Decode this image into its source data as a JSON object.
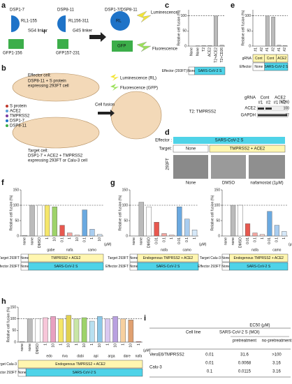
{
  "panel_labels": [
    "a",
    "b",
    "c",
    "d",
    "e",
    "f",
    "g",
    "h",
    "i"
  ],
  "panels": {
    "a": {
      "dsp17": "DSP1-7",
      "dsp811": "DSP8-11",
      "product": "DSP1-7/DSP8-11",
      "rl1": "RL1-155",
      "sg4": "SG4 linker",
      "gfp1": "GFP1-156",
      "rl2": "RL156-311",
      "g4s": "G4S linker",
      "gfp2": "GFP157-231",
      "plus": "+",
      "rl": "RL",
      "gfp": "GFP",
      "lum": "Luminescence",
      "fluo": "Fluorescence"
    },
    "b": {
      "effector": "Effector cell:",
      "effector_desc1": "DSP8-11 + S protein",
      "effector_desc2": "expressing 293FT cell",
      "fusion": "Cell fusion",
      "lum": "Luminescence (RL)",
      "fluo": "Fluorescence (GFP)",
      "legend": [
        "S protein",
        "ACE2",
        "TMPRSS2",
        "DSP1-7",
        "DSP8-11"
      ],
      "target": "Target cell:",
      "target_desc1": "DSP1-7 + ACE2 + TMPRSS2",
      "target_desc2": "expressing 293FT or Calu-3 cell"
    },
    "c": {
      "note": "T2: TMPRSS2"
    },
    "d": {
      "effector_label": "Effector :",
      "effector": "SARS-CoV-2 S",
      "target_label": "Target:",
      "target_none": "None",
      "target": "TMPRSS2 + ACE2",
      "cell": "293FT",
      "images": [
        "None",
        "DMSO",
        "nafamostat (1μM)"
      ]
    },
    "e": {
      "grna": "gRNA",
      "cont": "Cont",
      "ace2": "ACE2",
      "lanes": [
        "#1",
        "#2",
        "#1",
        "#2"
      ],
      "kda": "(kDa)",
      "band1": "ACE2",
      "band2": "GAPDH",
      "mw1": "100",
      "mw2": "37"
    }
  },
  "chart_data": [
    {
      "type": "bar",
      "ylabel": "Relative cell fusion (%)",
      "categories": [
        "None",
        "None",
        "T2",
        "ACE2",
        "T2+ACE2",
        "T2+CD26"
      ],
      "values": [
        0,
        1,
        2,
        2,
        100,
        3
      ],
      "colors": [
        "#bbbbbb",
        "#bbbbbb",
        "#bbbbbb",
        "#bbbbbb",
        "#bbbbbb",
        "#bbbbbb"
      ],
      "ylim": [
        0,
        120
      ],
      "yticks": [
        0,
        50,
        100
      ],
      "reference_line": 100,
      "rows": [
        {
          "label": "Effector (293FT)",
          "cells": [
            "None",
            "SARS-CoV-2 S"
          ]
        }
      ]
    },
    {
      "type": "bar",
      "ylabel": "Relative cell fusion (%)",
      "categories": [
        "#1",
        "#2",
        "#1",
        "#2",
        "#1",
        "#2"
      ],
      "values": [
        0,
        0,
        100,
        96,
        3,
        2
      ],
      "colors": [
        "#bbbbbb",
        "#bbbbbb",
        "#bbbbbb",
        "#bbbbbb",
        "#bbbbbb",
        "#bbbbbb"
      ],
      "ylim": [
        0,
        120
      ],
      "yticks": [
        0,
        50,
        100
      ],
      "reference_line": 100,
      "rows": [
        {
          "label": "gRNA",
          "cells": [
            "Cont",
            "Cont",
            "ACE2"
          ]
        },
        {
          "label": "Effector",
          "cells": [
            "None",
            "SARS-CoV-2 S"
          ]
        }
      ]
    },
    {
      "type": "bar",
      "ylabel": "Relative cell fusion (%)",
      "categories": [
        "none",
        "none",
        "DMSO",
        "1",
        "10",
        "0.1",
        "1",
        "10",
        "0.1",
        "1",
        "10"
      ],
      "values": [
        2,
        100,
        100,
        100,
        95,
        35,
        10,
        3,
        85,
        22,
        5
      ],
      "colors": [
        "#bbbbbb",
        "#bbbbbb",
        "#ffffff",
        "#f5e66a",
        "#9ed36a",
        "#e8584f",
        "#f4a6a0",
        "#f9d3cf",
        "#6aa9e0",
        "#a9cdf0",
        "#d6e8f8"
      ],
      "ylim": [
        0,
        150
      ],
      "yticks": [
        0,
        50,
        100,
        150
      ],
      "reference_line": 100,
      "groups": [
        "gabe",
        "nafa",
        "camo"
      ],
      "unit": "(μM)",
      "rows": [
        {
          "label": "Target 293FT",
          "cells": [
            "None",
            "TMPRSS2 + ACE2"
          ]
        },
        {
          "label": "Effector 293FT",
          "cells": [
            "None",
            "SARS-CoV-2 S"
          ]
        }
      ]
    },
    {
      "type": "bar",
      "ylabel": "Relative cell fusion (%)",
      "categories": [
        "none",
        "none",
        "DMSO",
        "0.01",
        "0.1",
        "1",
        "0.01",
        "0.1",
        "1"
      ],
      "values": [
        0,
        110,
        95,
        45,
        8,
        3,
        95,
        55,
        20
      ],
      "colors": [
        "#bbbbbb",
        "#bbbbbb",
        "#ffffff",
        "#e8584f",
        "#f4a6a0",
        "#f9d3cf",
        "#6aa9e0",
        "#a9cdf0",
        "#d6e8f8"
      ],
      "ylim": [
        0,
        150
      ],
      "yticks": [
        0,
        50,
        100,
        150
      ],
      "reference_line": 100,
      "groups": [
        "nafa",
        "camo"
      ],
      "unit": "(μM)",
      "rows": [
        {
          "label": "Target 293FT",
          "cells": [
            "None",
            "Endogenous TMPRSS2 + ACE2"
          ]
        },
        {
          "label": "Effector 293FT",
          "cells": [
            "None",
            "SARS-CoV-2 S"
          ]
        }
      ]
    },
    {
      "type": "bar",
      "ylabel": "Relative cell fusion (%)",
      "categories": [
        "none",
        "none",
        "DMSO",
        "0.01",
        "0.1",
        "1",
        "0.01",
        "0.1",
        "1"
      ],
      "values": [
        0,
        100,
        100,
        40,
        10,
        5,
        80,
        35,
        15
      ],
      "colors": [
        "#bbbbbb",
        "#bbbbbb",
        "#ffffff",
        "#e8584f",
        "#f4a6a0",
        "#f9d3cf",
        "#6aa9e0",
        "#a9cdf0",
        "#d6e8f8"
      ],
      "ylim": [
        0,
        150
      ],
      "yticks": [
        0,
        50,
        100,
        150
      ],
      "reference_line": 100,
      "groups": [
        "nafa",
        "camo"
      ],
      "unit": "(μM)",
      "rows": [
        {
          "label": "Target Calu-3",
          "cells": [
            "None",
            "Endogenous TMPRSS2 + ACE2"
          ]
        },
        {
          "label": "Effector 293FT",
          "cells": [
            "None",
            "SARS-CoV-2 S"
          ]
        }
      ]
    },
    {
      "type": "bar",
      "ylabel": "Relative cell fusion (%)",
      "categories": [
        "none",
        "none",
        "DMSO",
        "1",
        "10",
        "1",
        "10",
        "1",
        "10",
        "1",
        "10",
        "1",
        "10",
        "1",
        "10",
        "1"
      ],
      "values": [
        2,
        100,
        100,
        105,
        110,
        100,
        115,
        100,
        105,
        90,
        110,
        100,
        110,
        100,
        95,
        2
      ],
      "colors": [
        "#bbbbbb",
        "#bbbbbb",
        "#ffffff",
        "#f7c6d9",
        "#e8a0c0",
        "#f5e66a",
        "#e0d050",
        "#c9e6a6",
        "#9ed36a",
        "#b8e0f0",
        "#8cc8e8",
        "#d9c8f0",
        "#b9a0e0",
        "#f7d0a0",
        "#e0a070",
        "#e8584f"
      ],
      "ylim": [
        0,
        150
      ],
      "yticks": [
        0,
        50,
        100,
        150
      ],
      "reference_line": 100,
      "groups": [
        "edo",
        "riva",
        "dabi",
        "api",
        "arga",
        "dare",
        "nafa"
      ],
      "unit": "(μM)",
      "rows": [
        {
          "label": "Target Calu-3",
          "cells": [
            "Endogenous TMPRSS2 + ACE2"
          ]
        },
        {
          "label": "Effector 293FT",
          "cells": [
            "None",
            "SARS-CoV-2 S"
          ]
        }
      ]
    }
  ],
  "table": {
    "headers": [
      "Cell line",
      "SARS-CoV-2 S (MOI)",
      "EC50 (μM)"
    ],
    "subheaders": [
      "pretreatment",
      "no-pretreatment"
    ],
    "rows": [
      [
        "VeroE6/TMPRSS2",
        "0.01",
        "31.6",
        ">100"
      ],
      [
        "Calu-3",
        "0.01",
        "0.0068",
        "3.16"
      ],
      [
        "0.1",
        "0.0115",
        "3.16"
      ]
    ]
  }
}
